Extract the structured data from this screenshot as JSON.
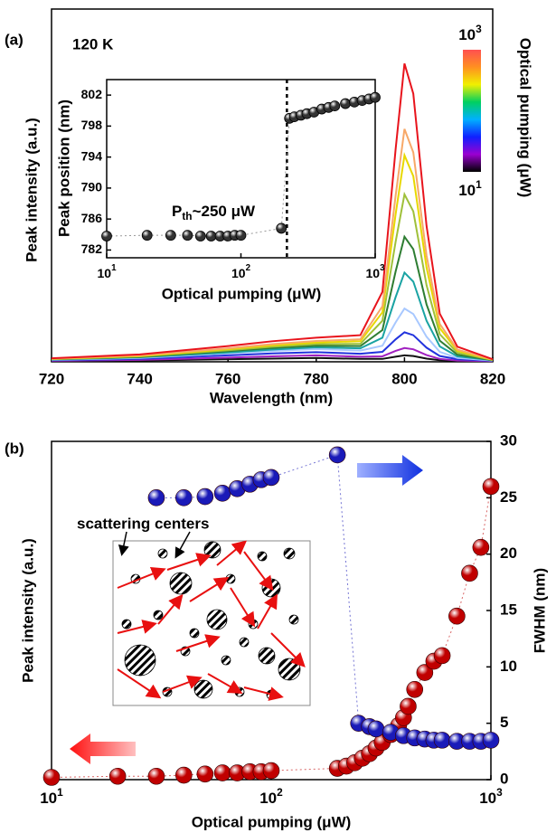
{
  "chart_data": [
    {
      "type": "line",
      "label": "(a)",
      "annotation": "120 K",
      "xlabel": "Wavelength (nm)",
      "ylabel": "Peak intensity (a.u.)",
      "xlim": [
        720,
        820
      ],
      "xticks": [
        720,
        740,
        760,
        780,
        800,
        820
      ],
      "ylim": [
        0,
        1.1
      ],
      "x": [
        720,
        740,
        760,
        770,
        780,
        790,
        795,
        798,
        800,
        802,
        805,
        808,
        812,
        820
      ],
      "series": [
        {
          "color": "#111111",
          "values": [
            0.002,
            0.004,
            0.008,
            0.01,
            0.012,
            0.009,
            0.009,
            0.016,
            0.02,
            0.018,
            0.01,
            0.005,
            0.003,
            0.001
          ]
        },
        {
          "color": "#a020c0",
          "values": [
            0.003,
            0.006,
            0.013,
            0.017,
            0.02,
            0.016,
            0.017,
            0.034,
            0.043,
            0.039,
            0.021,
            0.009,
            0.004,
            0.002
          ]
        },
        {
          "color": "#2233dd",
          "values": [
            0.005,
            0.009,
            0.02,
            0.026,
            0.03,
            0.025,
            0.031,
            0.07,
            0.092,
            0.083,
            0.044,
            0.018,
            0.008,
            0.003
          ]
        },
        {
          "color": "#a8c8ff",
          "values": [
            0.006,
            0.012,
            0.026,
            0.034,
            0.04,
            0.035,
            0.05,
            0.123,
            0.166,
            0.149,
            0.078,
            0.031,
            0.012,
            0.004
          ]
        },
        {
          "color": "#1aa3a3",
          "values": [
            0.007,
            0.014,
            0.029,
            0.038,
            0.045,
            0.042,
            0.075,
            0.202,
            0.278,
            0.25,
            0.128,
            0.048,
            0.017,
            0.005
          ]
        },
        {
          "color": "#2e7d32",
          "values": [
            0.008,
            0.015,
            0.033,
            0.043,
            0.05,
            0.049,
            0.099,
            0.282,
            0.39,
            0.351,
            0.179,
            0.066,
            0.022,
            0.005
          ]
        },
        {
          "color": "#9fc03a",
          "values": [
            0.008,
            0.017,
            0.036,
            0.047,
            0.055,
            0.056,
            0.128,
            0.375,
            0.522,
            0.469,
            0.239,
            0.086,
            0.028,
            0.006
          ]
        },
        {
          "color": "#e8d800",
          "values": [
            0.009,
            0.018,
            0.039,
            0.051,
            0.06,
            0.064,
            0.154,
            0.461,
            0.644,
            0.579,
            0.294,
            0.105,
            0.034,
            0.006
          ]
        },
        {
          "color": "#f7a868",
          "values": [
            0.01,
            0.02,
            0.042,
            0.055,
            0.065,
            0.07,
            0.173,
            0.519,
            0.726,
            0.653,
            0.331,
            0.118,
            0.038,
            0.007
          ]
        },
        {
          "color": "#e8141c",
          "values": [
            0.011,
            0.023,
            0.049,
            0.064,
            0.075,
            0.083,
            0.218,
            0.664,
            0.93,
            0.836,
            0.424,
            0.15,
            0.047,
            0.008
          ]
        }
      ],
      "colorbar": {
        "title": "Optical pumping (μW)",
        "colors": [
          "#000000",
          "#9b00d0",
          "#1020ff",
          "#00b0ff",
          "#00d060",
          "#f0f000",
          "#ff9020",
          "#ff5050"
        ],
        "top": {
          "label": "10",
          "sup": "3"
        },
        "bottom": {
          "label": "10",
          "sup": "1"
        }
      }
    },
    {
      "type": "scatter",
      "xlog": true,
      "xlabel": "Optical pumping (μW)",
      "ylabel": "Peak position (nm)",
      "xlim": [
        10,
        1000
      ],
      "xticks": [
        {
          "value": 10,
          "label": "10",
          "sup": "1"
        },
        {
          "value": 100,
          "label": "10",
          "sup": "2"
        },
        {
          "value": 1000,
          "label": "10",
          "sup": "3"
        }
      ],
      "ylim": [
        781,
        804
      ],
      "yticks": [
        782,
        786,
        790,
        794,
        798,
        802
      ],
      "color": "#333333",
      "threshold": 220,
      "annotation": [
        "P",
        "th",
        "~250 μW"
      ],
      "x": [
        10,
        20,
        30,
        40,
        50,
        60,
        70,
        80,
        90,
        100,
        200,
        230,
        250,
        280,
        310,
        350,
        400,
        450,
        500,
        600,
        700,
        800,
        900,
        1000
      ],
      "values": [
        783.8,
        783.9,
        783.9,
        783.9,
        783.8,
        783.8,
        783.8,
        783.8,
        783.9,
        783.9,
        784.8,
        799.0,
        799.2,
        799.4,
        799.6,
        799.8,
        800.2,
        800.4,
        800.6,
        800.9,
        801.1,
        801.3,
        801.5,
        801.7
      ]
    },
    {
      "type": "scatter",
      "xlog": true,
      "label": "(b)",
      "annotation": "scattering centers",
      "xlabel": "Optical pumping (μW)",
      "ylabel": "Peak intensity (a.u.)",
      "y2label": "FWHM (nm)",
      "xlim": [
        10,
        1000
      ],
      "xticks": [
        {
          "value": 10,
          "label": "10",
          "sup": "1"
        },
        {
          "value": 100,
          "label": "10",
          "sup": "2"
        },
        {
          "value": 1000,
          "label": "10",
          "sup": "3"
        }
      ],
      "ylim": [
        0,
        30
      ],
      "y2lim": [
        0,
        30
      ],
      "y2ticks": [
        0,
        5,
        10,
        15,
        20,
        25,
        30
      ],
      "series": [
        {
          "color": "#c00000",
          "x": [
            10,
            20,
            30,
            40,
            50,
            60,
            70,
            80,
            90,
            100,
            200,
            220,
            240,
            260,
            280,
            300,
            320,
            350,
            380,
            400,
            420,
            450,
            500,
            550,
            600,
            700,
            800,
            900,
            1000
          ],
          "values": [
            0.2,
            0.3,
            0.3,
            0.4,
            0.5,
            0.6,
            0.6,
            0.7,
            0.7,
            0.8,
            1.0,
            1.2,
            1.5,
            1.9,
            2.3,
            2.8,
            3.3,
            4.0,
            4.8,
            5.5,
            6.5,
            8.0,
            9.5,
            10.5,
            11.0,
            14.5,
            18.3,
            20.6,
            26.0
          ]
        },
        {
          "color": "#1a1ab8",
          "axis": "y2",
          "x": [
            30,
            40,
            50,
            60,
            70,
            80,
            90,
            100,
            200,
            250,
            280,
            300,
            350,
            400,
            450,
            500,
            550,
            600,
            700,
            800,
            900,
            1000
          ],
          "values": [
            25.0,
            25.0,
            25.1,
            25.4,
            25.8,
            26.2,
            26.6,
            26.8,
            28.8,
            5.0,
            4.7,
            4.5,
            4.2,
            3.9,
            3.7,
            3.6,
            3.5,
            3.5,
            3.4,
            3.4,
            3.4,
            3.5
          ]
        }
      ]
    }
  ]
}
